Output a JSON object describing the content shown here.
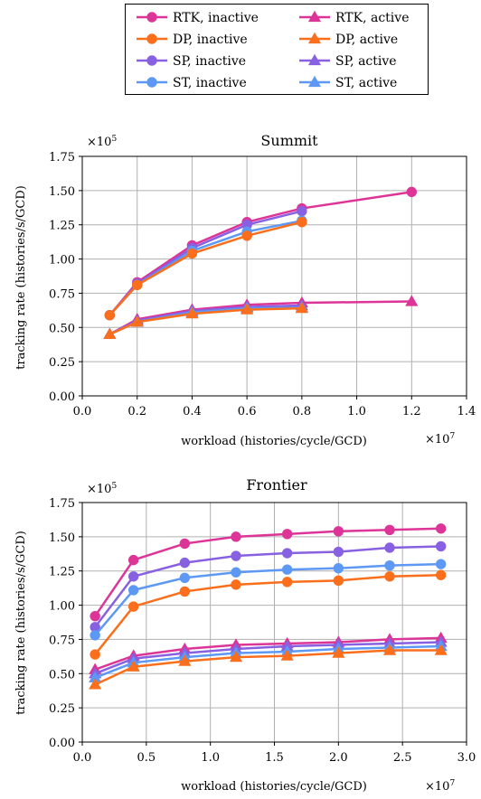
{
  "colors": {
    "RTK": "#dd3497",
    "DP": "#fa6e1c",
    "SP": "#8860e2",
    "ST": "#5d98f4"
  },
  "legend": {
    "entries": [
      {
        "label": "RTK, inactive",
        "series": "RTK",
        "marker": "circle"
      },
      {
        "label": "DP, inactive",
        "series": "DP",
        "marker": "circle"
      },
      {
        "label": "SP, inactive",
        "series": "SP",
        "marker": "circle"
      },
      {
        "label": "ST, inactive",
        "series": "ST",
        "marker": "circle"
      },
      {
        "label": "RTK, active",
        "series": "RTK",
        "marker": "triangle"
      },
      {
        "label": "DP, active",
        "series": "DP",
        "marker": "triangle"
      },
      {
        "label": "SP, active",
        "series": "SP",
        "marker": "triangle"
      },
      {
        "label": "ST, active",
        "series": "ST",
        "marker": "triangle"
      }
    ]
  },
  "chart_data": [
    {
      "type": "line",
      "title": "Summit",
      "xlabel": "workload (histories/cycle/GCD)",
      "ylabel": "tracking rate (histories/s/GCD)",
      "x_multiplier": "×10",
      "x_exponent": "7",
      "y_multiplier": "×10",
      "y_exponent": "5",
      "xlim": [
        0.0,
        1.4
      ],
      "ylim": [
        0.0,
        1.75
      ],
      "xticks": [
        0.0,
        0.2,
        0.4,
        0.6,
        0.8,
        1.0,
        1.2,
        1.4
      ],
      "yticks": [
        0.0,
        0.25,
        0.5,
        0.75,
        1.0,
        1.25,
        1.5,
        1.75
      ],
      "xtick_labels": [
        "0.0",
        "0.2",
        "0.4",
        "0.6",
        "0.8",
        "1.0",
        "1.2",
        "1.4"
      ],
      "ytick_labels": [
        "0.00",
        "0.25",
        "0.50",
        "0.75",
        "1.00",
        "1.25",
        "1.50",
        "1.75"
      ],
      "grid": true,
      "series": [
        {
          "name": "RTK, inactive",
          "color_key": "RTK",
          "marker": "circle",
          "x": [
            0.1,
            0.2,
            0.4,
            0.6,
            0.8,
            1.2
          ],
          "values": [
            0.59,
            0.83,
            1.1,
            1.27,
            1.37,
            1.49
          ]
        },
        {
          "name": "SP, inactive",
          "color_key": "SP",
          "marker": "circle",
          "x": [
            0.1,
            0.2,
            0.4,
            0.6,
            0.8
          ],
          "values": [
            0.59,
            0.82,
            1.08,
            1.25,
            1.35
          ]
        },
        {
          "name": "ST, inactive",
          "color_key": "ST",
          "marker": "circle",
          "x": [
            0.1,
            0.2,
            0.4,
            0.6,
            0.8
          ],
          "values": [
            0.59,
            0.81,
            1.06,
            1.2,
            1.28
          ]
        },
        {
          "name": "DP, inactive",
          "color_key": "DP",
          "marker": "circle",
          "x": [
            0.1,
            0.2,
            0.4,
            0.6,
            0.8
          ],
          "values": [
            0.59,
            0.81,
            1.04,
            1.17,
            1.27
          ]
        },
        {
          "name": "RTK, active",
          "color_key": "RTK",
          "marker": "triangle",
          "x": [
            0.1,
            0.2,
            0.4,
            0.6,
            0.8,
            1.2
          ],
          "values": [
            0.45,
            0.56,
            0.63,
            0.665,
            0.68,
            0.69
          ]
        },
        {
          "name": "SP, active",
          "color_key": "SP",
          "marker": "triangle",
          "x": [
            0.1,
            0.2,
            0.4,
            0.6,
            0.8
          ],
          "values": [
            0.45,
            0.55,
            0.62,
            0.65,
            0.66
          ]
        },
        {
          "name": "ST, active",
          "color_key": "ST",
          "marker": "triangle",
          "x": [
            0.1,
            0.2,
            0.4,
            0.6,
            0.8
          ],
          "values": [
            0.45,
            0.54,
            0.61,
            0.64,
            0.645
          ]
        },
        {
          "name": "DP, active",
          "color_key": "DP",
          "marker": "triangle",
          "x": [
            0.1,
            0.2,
            0.4,
            0.6,
            0.8
          ],
          "values": [
            0.45,
            0.54,
            0.6,
            0.63,
            0.64
          ]
        }
      ]
    },
    {
      "type": "line",
      "title": "Frontier",
      "xlabel": "workload (histories/cycle/GCD)",
      "ylabel": "tracking rate (histories/s/GCD)",
      "x_multiplier": "×10",
      "x_exponent": "7",
      "y_multiplier": "×10",
      "y_exponent": "5",
      "xlim": [
        0.0,
        3.0
      ],
      "ylim": [
        0.0,
        1.75
      ],
      "xticks": [
        0.0,
        0.5,
        1.0,
        1.5,
        2.0,
        2.5,
        3.0
      ],
      "yticks": [
        0.0,
        0.25,
        0.5,
        0.75,
        1.0,
        1.25,
        1.5,
        1.75
      ],
      "xtick_labels": [
        "0.0",
        "0.5",
        "1.0",
        "1.5",
        "2.0",
        "2.5",
        "3.0"
      ],
      "ytick_labels": [
        "0.00",
        "0.25",
        "0.50",
        "0.75",
        "1.00",
        "1.25",
        "1.50",
        "1.75"
      ],
      "grid": true,
      "series": [
        {
          "name": "RTK, inactive",
          "color_key": "RTK",
          "marker": "circle",
          "x": [
            0.1,
            0.4,
            0.8,
            1.2,
            1.6,
            2.0,
            2.4,
            2.8
          ],
          "values": [
            0.92,
            1.33,
            1.45,
            1.5,
            1.52,
            1.54,
            1.55,
            1.56
          ]
        },
        {
          "name": "SP, inactive",
          "color_key": "SP",
          "marker": "circle",
          "x": [
            0.1,
            0.4,
            0.8,
            1.2,
            1.6,
            2.0,
            2.4,
            2.8
          ],
          "values": [
            0.84,
            1.21,
            1.31,
            1.36,
            1.38,
            1.39,
            1.42,
            1.43
          ]
        },
        {
          "name": "ST, inactive",
          "color_key": "ST",
          "marker": "circle",
          "x": [
            0.1,
            0.4,
            0.8,
            1.2,
            1.6,
            2.0,
            2.4,
            2.8
          ],
          "values": [
            0.78,
            1.11,
            1.2,
            1.24,
            1.26,
            1.27,
            1.29,
            1.3
          ]
        },
        {
          "name": "DP, inactive",
          "color_key": "DP",
          "marker": "circle",
          "x": [
            0.1,
            0.4,
            0.8,
            1.2,
            1.6,
            2.0,
            2.4,
            2.8
          ],
          "values": [
            0.64,
            0.99,
            1.1,
            1.15,
            1.17,
            1.18,
            1.21,
            1.22
          ]
        },
        {
          "name": "RTK, active",
          "color_key": "RTK",
          "marker": "triangle",
          "x": [
            0.1,
            0.4,
            0.8,
            1.2,
            1.6,
            2.0,
            2.4,
            2.8
          ],
          "values": [
            0.53,
            0.63,
            0.68,
            0.71,
            0.72,
            0.73,
            0.75,
            0.76
          ]
        },
        {
          "name": "SP, active",
          "color_key": "SP",
          "marker": "triangle",
          "x": [
            0.1,
            0.4,
            0.8,
            1.2,
            1.6,
            2.0,
            2.4,
            2.8
          ],
          "values": [
            0.5,
            0.61,
            0.65,
            0.68,
            0.7,
            0.71,
            0.72,
            0.73
          ]
        },
        {
          "name": "ST, active",
          "color_key": "ST",
          "marker": "triangle",
          "x": [
            0.1,
            0.4,
            0.8,
            1.2,
            1.6,
            2.0,
            2.4,
            2.8
          ],
          "values": [
            0.47,
            0.58,
            0.62,
            0.65,
            0.66,
            0.68,
            0.69,
            0.7
          ]
        },
        {
          "name": "DP, active",
          "color_key": "DP",
          "marker": "triangle",
          "x": [
            0.1,
            0.4,
            0.8,
            1.2,
            1.6,
            2.0,
            2.4,
            2.8
          ],
          "values": [
            0.42,
            0.55,
            0.59,
            0.62,
            0.63,
            0.65,
            0.67,
            0.67
          ]
        }
      ]
    }
  ]
}
